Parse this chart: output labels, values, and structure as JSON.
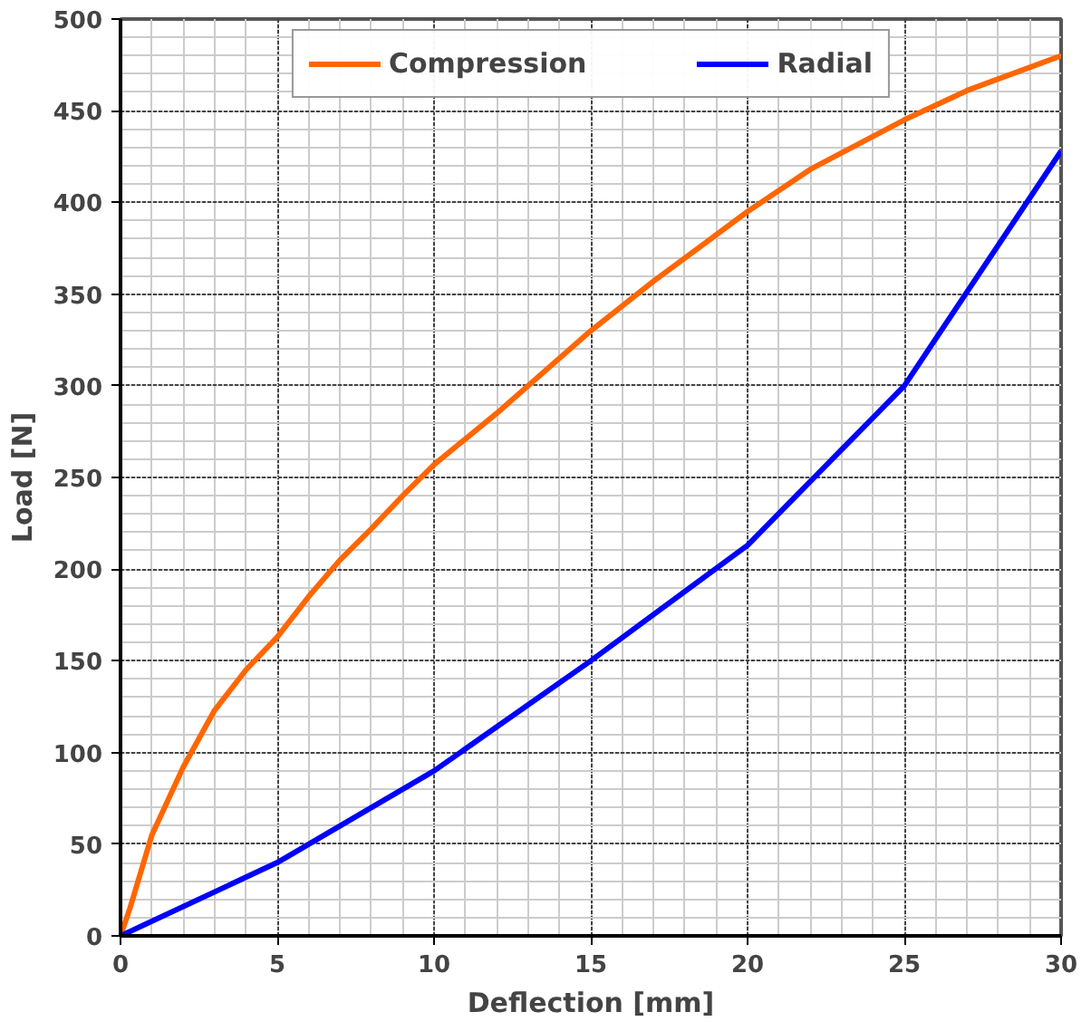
{
  "chart_data": {
    "type": "line",
    "xlabel": "Deflection [mm]",
    "ylabel": "Load [N]",
    "series": [
      {
        "name": "Compression",
        "color": "#ff6600",
        "x": [
          0,
          0.3,
          1,
          2,
          3,
          4,
          5,
          6,
          7,
          8,
          9,
          10,
          12,
          15,
          17,
          20,
          22,
          25,
          27,
          30
        ],
        "values": [
          0,
          15,
          55,
          92,
          123,
          145,
          163,
          185,
          205,
          222,
          240,
          257,
          285,
          330,
          357,
          395,
          418,
          445,
          461,
          480
        ]
      },
      {
        "name": "Radial",
        "color": "#0000ff",
        "x": [
          0,
          5,
          10,
          15,
          20,
          25,
          30
        ],
        "values": [
          0,
          40,
          90,
          150,
          213,
          300,
          428
        ]
      }
    ],
    "xlim": [
      0,
      30
    ],
    "ylim": [
      0,
      500
    ],
    "xticks": [
      0,
      5,
      10,
      15,
      20,
      25,
      30
    ],
    "yticks": [
      0,
      50,
      100,
      150,
      200,
      250,
      300,
      350,
      400,
      450,
      500
    ],
    "grid": true,
    "legend": "top",
    "marker": "none",
    "line_style": "solid"
  }
}
